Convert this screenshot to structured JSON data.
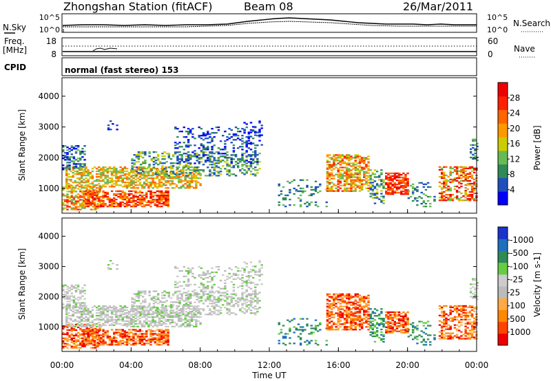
{
  "header": {
    "station_title": "Zhongshan Station (fitACF)",
    "beam": "Beam 08",
    "date": "26/Mar/2011"
  },
  "noise_panel": {
    "left_label": "N.Sky",
    "right_label": "N.Search",
    "left_ticks": [
      "10^5",
      "10^0"
    ],
    "right_ticks": [
      "10^5",
      "10^0"
    ]
  },
  "freq_panel": {
    "left_label_line1": "Freq.",
    "left_label_line2": "[MHz]",
    "right_label": "Nave",
    "left_ticks": [
      "18",
      "8"
    ],
    "right_ticks": [
      "60",
      "0"
    ]
  },
  "cpid": {
    "label": "CPID",
    "text": "normal (fast stereo) 153"
  },
  "colors": {
    "power_scale": [
      "#0000ff",
      "#1f4fbf",
      "#2e8b57",
      "#66bb55",
      "#cccc00",
      "#ff9900",
      "#ff6600",
      "#ff2200",
      "#ee0000"
    ],
    "velocity_scale": [
      "#ee0000",
      "#ff4400",
      "#ff8800",
      "#ffaa44",
      "#bbbbbb",
      "#cccccc",
      "#66cc44",
      "#2e8b57",
      "#1f6fbf",
      "#1a33cc"
    ]
  },
  "chart_data": [
    {
      "type": "heatmap",
      "quantity": "power",
      "xlabel": "",
      "ylabel": "Slant Range [km]",
      "y_ticks": [
        "1000",
        "2000",
        "3000",
        "4000"
      ],
      "ylim": [
        200,
        4600
      ],
      "colorbar_label": "Power [dB]",
      "colorbar_ticks": [
        "4",
        "8",
        "12",
        "16",
        "20",
        "24",
        "28"
      ],
      "colorbar_range": [
        0,
        30
      ]
    },
    {
      "type": "heatmap",
      "quantity": "velocity",
      "xlabel": "Time UT",
      "ylabel": "Slant Range [km]",
      "x_ticks": [
        "00:00",
        "04:00",
        "08:00",
        "12:00",
        "16:00",
        "20:00",
        "00:00"
      ],
      "y_ticks": [
        "1000",
        "2000",
        "3000",
        "4000"
      ],
      "ylim": [
        200,
        4600
      ],
      "colorbar_label": "Velocity [m s-1]",
      "colorbar_ticks": [
        "1000",
        "500",
        "100",
        "25",
        "-25",
        "-100",
        "-500",
        "-1000"
      ]
    }
  ]
}
